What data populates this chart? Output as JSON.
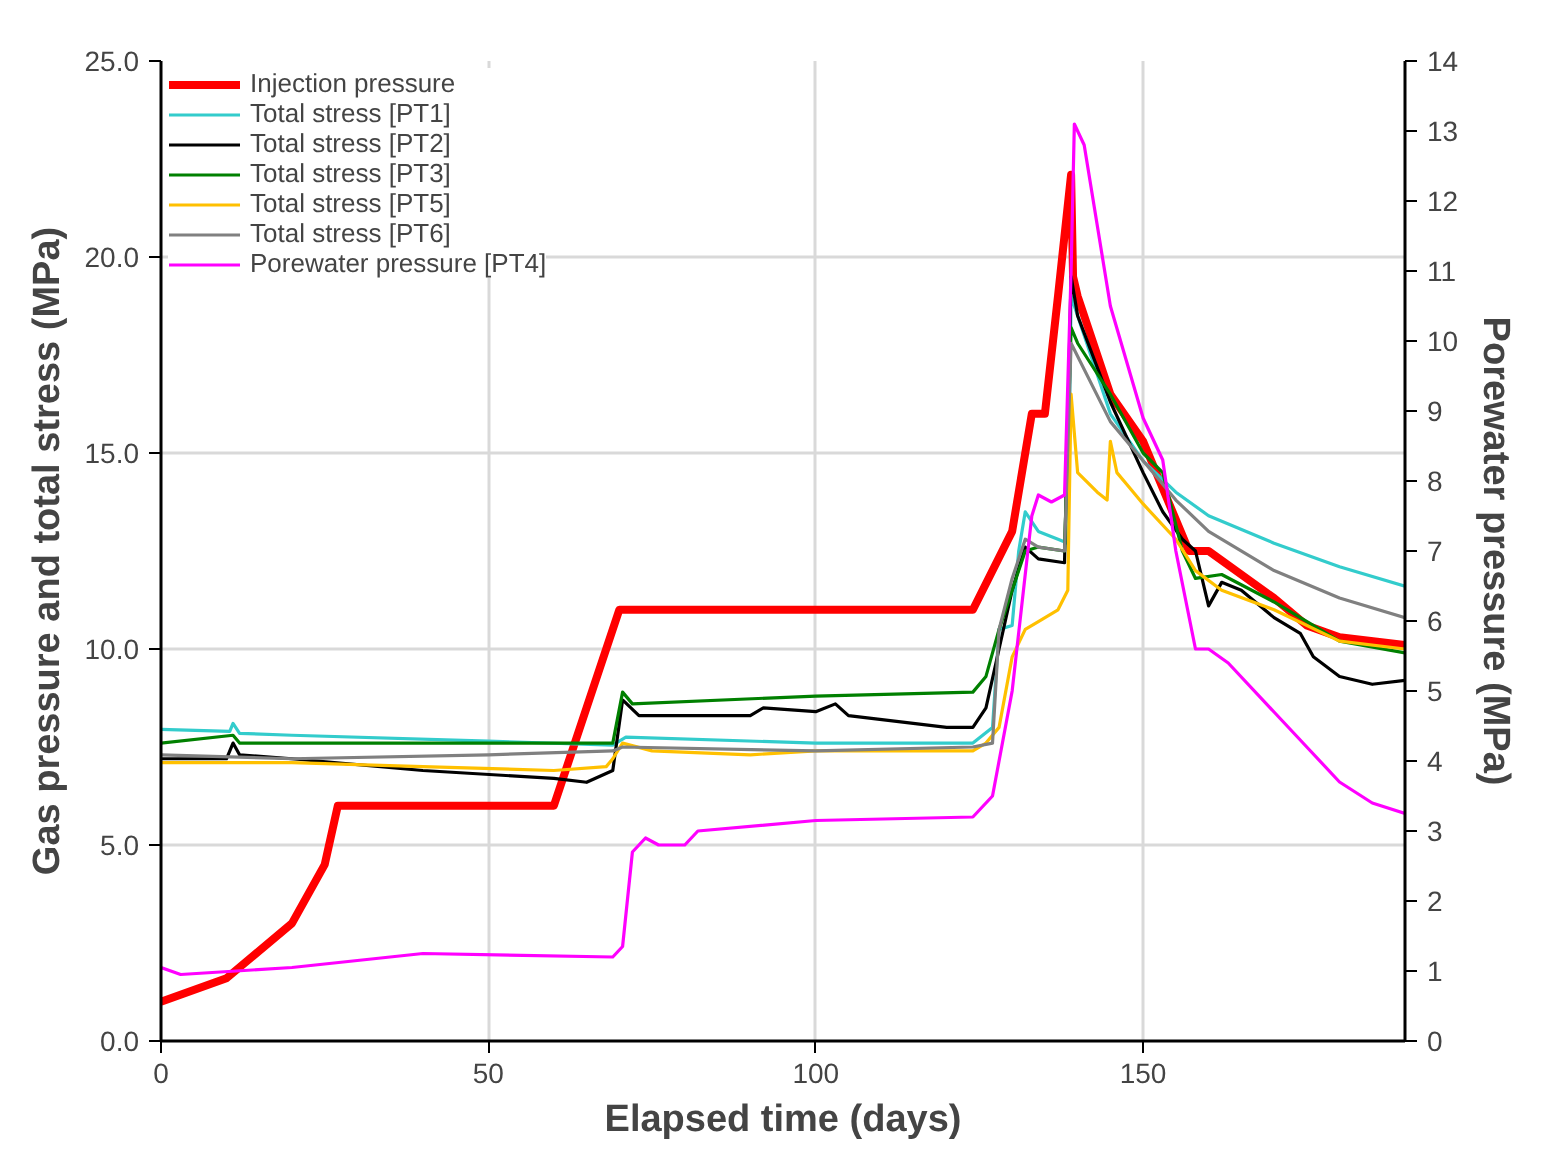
{
  "chart_data": {
    "type": "line",
    "xlabel": "Elapsed time (days)",
    "ylabel": "Gas pressure and total stress (MPa)",
    "y2label": "Porewater pressure (MPa)",
    "xlim": [
      0,
      190
    ],
    "xticks": [
      0,
      50,
      100,
      150
    ],
    "ylim": [
      0,
      25
    ],
    "yticks": [
      {
        "value": 0,
        "label": "0.0"
      },
      {
        "value": 5,
        "label": "5.0"
      },
      {
        "value": 10,
        "label": "10.0"
      },
      {
        "value": 15,
        "label": "15.0"
      },
      {
        "value": 20,
        "label": "20.0"
      },
      {
        "value": 25,
        "label": "25.0"
      }
    ],
    "y2lim": [
      0,
      14
    ],
    "y2ticks": [
      0,
      1,
      2,
      3,
      4,
      5,
      6,
      7,
      8,
      9,
      10,
      11,
      12,
      13,
      14
    ],
    "grid": true,
    "legend": "top left",
    "marker": "none",
    "line_style": "solid",
    "series": [
      {
        "name": "Injection pressure",
        "color": "#ff0000",
        "x": [
          0,
          10,
          20,
          25,
          27,
          60,
          65,
          70,
          124,
          130,
          133,
          135,
          137,
          139,
          139.3,
          140,
          145,
          150,
          157,
          160,
          170,
          175,
          180,
          190
        ],
        "values": [
          1.0,
          1.6,
          3.0,
          4.5,
          6.0,
          6.0,
          8.5,
          11.0,
          11.0,
          13.0,
          16.0,
          16.0,
          19.0,
          22.1,
          19.5,
          19.0,
          16.5,
          15.3,
          12.5,
          12.5,
          11.3,
          10.6,
          10.3,
          10.1
        ]
      },
      {
        "name": "Total stress [PT1]",
        "color": "#33cccc",
        "x": [
          0,
          10.5,
          11,
          12,
          20,
          50,
          69,
          71,
          100,
          124,
          127,
          128,
          130,
          131,
          132,
          134,
          137,
          138.5,
          139,
          145,
          150,
          155,
          160,
          170,
          180,
          190
        ],
        "values": [
          7.95,
          7.9,
          8.1,
          7.85,
          7.8,
          7.65,
          7.55,
          7.75,
          7.6,
          7.6,
          8.0,
          10.5,
          10.6,
          12.5,
          13.5,
          13.0,
          12.8,
          12.7,
          19.0,
          16.0,
          14.8,
          14.0,
          13.4,
          12.7,
          12.1,
          11.6
        ]
      },
      {
        "name": "Total stress [PT2]",
        "color": "#000000",
        "x": [
          0,
          10,
          11,
          12,
          20,
          40,
          60,
          65,
          69,
          70.5,
          73,
          90,
          92,
          100,
          103,
          105,
          120,
          124,
          126,
          128,
          130,
          132,
          134,
          138,
          139,
          140,
          145,
          150,
          153,
          156,
          158,
          160,
          162,
          165,
          170,
          174,
          176,
          180,
          185,
          190
        ],
        "values": [
          7.2,
          7.2,
          7.6,
          7.3,
          7.2,
          6.9,
          6.7,
          6.6,
          6.9,
          8.7,
          8.3,
          8.3,
          8.5,
          8.4,
          8.6,
          8.3,
          8.0,
          8.0,
          8.5,
          10.0,
          11.5,
          12.6,
          12.3,
          12.2,
          19.5,
          18.5,
          16.3,
          14.5,
          13.5,
          12.8,
          12.5,
          11.1,
          11.7,
          11.5,
          10.8,
          10.4,
          9.8,
          9.3,
          9.1,
          9.2
        ]
      },
      {
        "name": "Total stress [PT3]",
        "color": "#008000",
        "x": [
          0,
          11,
          12,
          20,
          69,
          70.5,
          72,
          100,
          124,
          126,
          128,
          130,
          132,
          134,
          138,
          139,
          140,
          145,
          150,
          153,
          156,
          158,
          162,
          170,
          180,
          190
        ],
        "values": [
          7.6,
          7.8,
          7.6,
          7.6,
          7.6,
          8.9,
          8.6,
          8.8,
          8.9,
          9.3,
          10.5,
          11.5,
          12.5,
          12.6,
          12.5,
          18.2,
          17.8,
          16.5,
          15.0,
          14.5,
          12.5,
          11.8,
          11.9,
          11.2,
          10.2,
          9.9
        ]
      },
      {
        "name": "Total stress [PT5]",
        "color": "#ffc000",
        "x": [
          0,
          20,
          40,
          60,
          68,
          69,
          70.5,
          75,
          90,
          100,
          124,
          126,
          128,
          130,
          132,
          134,
          137,
          138.5,
          139,
          140,
          143,
          144.5,
          145,
          146,
          148,
          150,
          155,
          158,
          162,
          170,
          180,
          190
        ],
        "values": [
          7.1,
          7.1,
          7.0,
          6.9,
          7.0,
          7.2,
          7.6,
          7.4,
          7.3,
          7.4,
          7.4,
          7.6,
          8.0,
          9.8,
          10.5,
          10.7,
          11.0,
          11.5,
          16.5,
          14.5,
          14.0,
          13.8,
          15.3,
          14.5,
          14.1,
          13.7,
          12.8,
          12.0,
          11.5,
          11.0,
          10.2,
          10.0
        ]
      },
      {
        "name": "Total stress [PT6]",
        "color": "#808080",
        "x": [
          0,
          20,
          50,
          69,
          70.5,
          100,
          124,
          127,
          128,
          130,
          132,
          134,
          138,
          139,
          145,
          150,
          155,
          160,
          170,
          180,
          190
        ],
        "values": [
          7.3,
          7.2,
          7.3,
          7.4,
          7.5,
          7.4,
          7.5,
          7.6,
          10.5,
          11.8,
          12.8,
          12.6,
          12.5,
          17.8,
          15.8,
          14.8,
          13.8,
          13.0,
          12.0,
          11.3,
          10.8
        ]
      },
      {
        "name": "Porewater pressure [PT4]",
        "color": "#ff00ff",
        "axis": "y2",
        "x": [
          0,
          3,
          20,
          35,
          40,
          69,
          70.5,
          72,
          74,
          76,
          80,
          82,
          100,
          124,
          127,
          130,
          133,
          134,
          136,
          138,
          139,
          139.5,
          141,
          145,
          150,
          153,
          155,
          158,
          160,
          163,
          170,
          175,
          180,
          185,
          190
        ],
        "values": [
          1.05,
          0.95,
          1.05,
          1.2,
          1.25,
          1.2,
          1.35,
          2.7,
          2.9,
          2.8,
          2.8,
          3.0,
          3.15,
          3.2,
          3.5,
          5.0,
          7.5,
          7.8,
          7.7,
          7.8,
          11.0,
          13.1,
          12.8,
          10.5,
          8.9,
          8.3,
          7.0,
          5.6,
          5.6,
          5.4,
          4.7,
          4.2,
          3.7,
          3.4,
          3.25
        ]
      }
    ]
  }
}
